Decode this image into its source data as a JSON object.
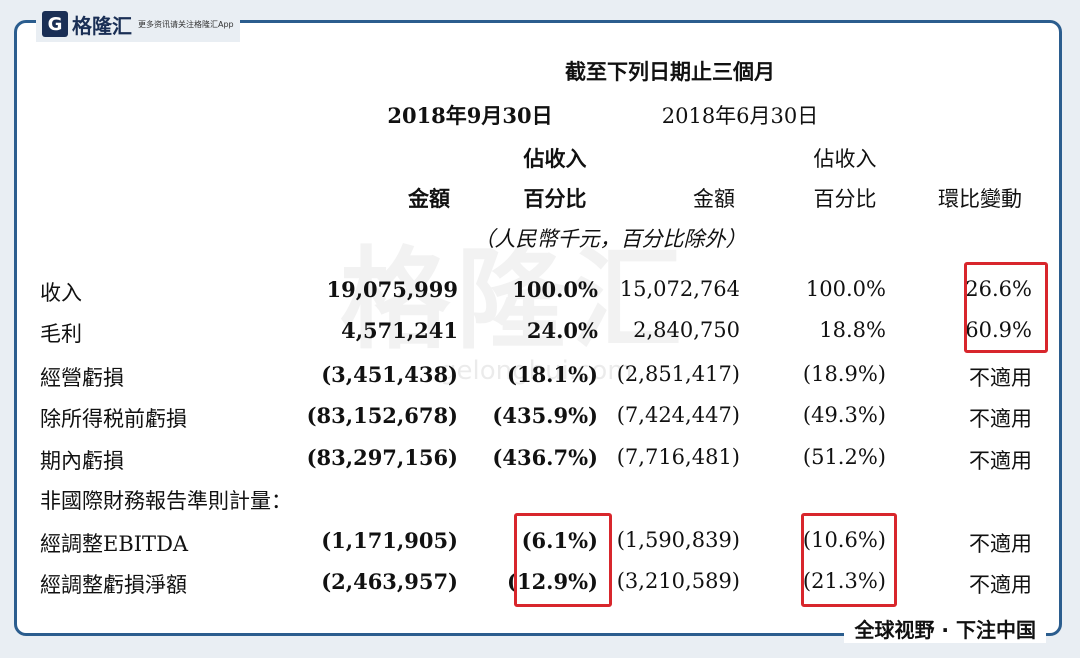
{
  "branding": {
    "logo_mark": "G",
    "logo_text": "格隆汇",
    "logo_sub": "更多资讯请关注格隆汇App",
    "watermark": "格隆汇",
    "watermark_url": "gelonghui.com",
    "footer": "全球视野 · 下注中国"
  },
  "header": {
    "period": "截至下列日期止三個月",
    "date1": "2018年9月30日",
    "date2": "2018年6月30日",
    "pct_top1": "佔收入",
    "pct_top2": "佔收入",
    "amount1": "金額",
    "pct_bottom1": "百分比",
    "amount2": "金額",
    "pct_bottom2": "百分比",
    "change": "環比變動",
    "unit_note": "（人民幣千元，百分比除外）"
  },
  "rows": [
    {
      "label": "收入",
      "a1": "19,075,999",
      "p1": "100.0%",
      "a2": "15,072,764",
      "p2": "100.0%",
      "chg": "26.6%"
    },
    {
      "label": "毛利",
      "a1": "4,571,241",
      "p1": "24.0%",
      "a2": "2,840,750",
      "p2": "18.8%",
      "chg": "60.9%"
    },
    {
      "label": "經營虧損",
      "a1": "(3,451,438)",
      "p1": "(18.1%)",
      "a2": "(2,851,417)",
      "p2": "(18.9%)",
      "chg": "不適用"
    },
    {
      "label": "除所得税前虧損",
      "a1": "(83,152,678)",
      "p1": "(435.9%)",
      "a2": "(7,424,447)",
      "p2": "(49.3%)",
      "chg": "不適用"
    },
    {
      "label": "期內虧損",
      "a1": "(83,297,156)",
      "p1": "(436.7%)",
      "a2": "(7,716,481)",
      "p2": "(51.2%)",
      "chg": "不適用"
    }
  ],
  "non_ifrs_label": "非國際財務報告準則計量：",
  "non_ifrs_rows": [
    {
      "label": "經調整EBITDA",
      "a1": "(1,171,905)",
      "p1": "(6.1%)",
      "a2": "(1,590,839)",
      "p2": "(10.6%)",
      "chg": "不適用"
    },
    {
      "label": "經調整虧損淨額",
      "a1": "(2,463,957)",
      "p1": "(12.9%)",
      "a2": "(3,210,589)",
      "p2": "(21.3%)",
      "chg": "不適用"
    }
  ],
  "colors": {
    "highlight_box": "#d8262c",
    "frame": "#2b5d8e"
  }
}
